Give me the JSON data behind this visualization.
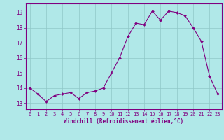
{
  "x": [
    0,
    1,
    2,
    3,
    4,
    5,
    6,
    7,
    8,
    9,
    10,
    11,
    12,
    13,
    14,
    15,
    16,
    17,
    18,
    19,
    20,
    21,
    22,
    23
  ],
  "y": [
    14.0,
    13.6,
    13.1,
    13.5,
    13.6,
    13.7,
    13.3,
    13.7,
    13.8,
    14.0,
    15.0,
    16.0,
    17.4,
    18.3,
    18.2,
    19.1,
    18.5,
    19.1,
    19.0,
    18.8,
    18.0,
    17.1,
    14.8,
    13.6
  ],
  "line_color": "#800080",
  "marker": "D",
  "marker_size": 2.0,
  "bg_color": "#b0e8e8",
  "grid_color": "#90c8c8",
  "axis_color": "#800080",
  "xlabel": "Windchill (Refroidissement éolien,°C)",
  "ylabel_ticks": [
    13,
    14,
    15,
    16,
    17,
    18,
    19
  ],
  "xlim": [
    -0.5,
    23.5
  ],
  "ylim": [
    12.6,
    19.6
  ],
  "xticks": [
    0,
    1,
    2,
    3,
    4,
    5,
    6,
    7,
    8,
    9,
    10,
    11,
    12,
    13,
    14,
    15,
    16,
    17,
    18,
    19,
    20,
    21,
    22,
    23
  ],
  "tick_fontsize": 5.0,
  "xlabel_fontsize": 5.5,
  "linewidth": 0.8
}
